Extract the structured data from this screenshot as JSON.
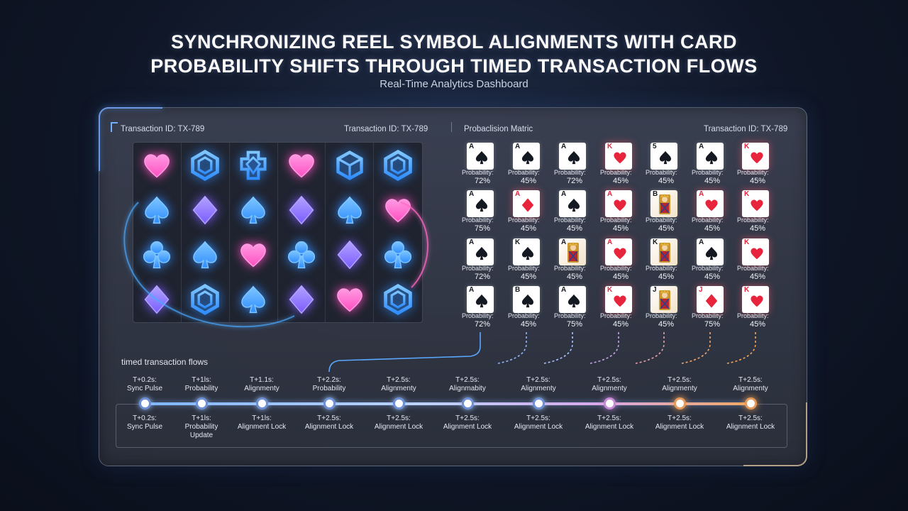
{
  "header": {
    "title_line1": "SYNCHRONIZING REEL SYMBOL ALIGNMENTS WITH CARD",
    "title_line2": "PROBABILITY SHIFTS THROUGH TIMED TRANSACTION FLOWS",
    "subtitle": "Real-Time Analytics Dashboard"
  },
  "panel": {
    "transaction_left": "Transaction ID: TX-789",
    "transaction_mid": "Transaction ID: TX-789",
    "matrix_title": "Probaclision Matric",
    "transaction_right": "Transaction ID: TX-789"
  },
  "reels": {
    "rows": [
      [
        "heart-pink",
        "hexagon-blue",
        "crest-blue",
        "heart-pink",
        "cube-blue",
        "hexagon-blue"
      ],
      [
        "spade-blue",
        "diamond-purple",
        "spade-blue",
        "diamond-purple",
        "spade-blue",
        "heart-pink"
      ],
      [
        "club-blue",
        "spade-blue",
        "heart-pink",
        "club-blue",
        "diamond-purple",
        "club-blue"
      ],
      [
        "diamond-purple",
        "hexagon-blue",
        "spade-blue",
        "diamond-purple",
        "heart-pink",
        "hexagon-blue"
      ]
    ]
  },
  "matrix": {
    "rows": [
      [
        {
          "rank": "A",
          "suit": "spade",
          "label": "Probability:",
          "prob": "72%"
        },
        {
          "rank": "A",
          "suit": "spade",
          "label": "Probability:",
          "prob": "45%"
        },
        {
          "rank": "A",
          "suit": "spade",
          "label": "Probability:",
          "prob": "72%"
        },
        {
          "rank": "K",
          "suit": "heart",
          "label": "Probability:",
          "prob": "45%"
        },
        {
          "rank": "5",
          "suit": "spade",
          "label": "Probability:",
          "prob": "45%"
        },
        {
          "rank": "A",
          "suit": "spade",
          "label": "Probability:",
          "prob": "45%"
        },
        {
          "rank": "K",
          "suit": "heart",
          "label": "Probability:",
          "prob": "45%"
        }
      ],
      [
        {
          "rank": "A",
          "suit": "spade",
          "label": "Probability:",
          "prob": "75%"
        },
        {
          "rank": "A",
          "suit": "diamond",
          "label": "Probability:",
          "prob": "45%"
        },
        {
          "rank": "A",
          "suit": "spade",
          "label": "Probability:",
          "prob": "45%"
        },
        {
          "rank": "A",
          "suit": "heart",
          "label": "Probability:",
          "prob": "45%"
        },
        {
          "rank": "B",
          "suit": "face",
          "label": "Probability:",
          "prob": "45%"
        },
        {
          "rank": "A",
          "suit": "heart",
          "label": "Probability:",
          "prob": "45%"
        },
        {
          "rank": "K",
          "suit": "heart",
          "label": "Probability:",
          "prob": "45%"
        }
      ],
      [
        {
          "rank": "A",
          "suit": "spade",
          "label": "Probability:",
          "prob": "72%"
        },
        {
          "rank": "K",
          "suit": "spade",
          "label": "Probability:",
          "prob": "45%"
        },
        {
          "rank": "A",
          "suit": "face",
          "label": "Probability:",
          "prob": "45%"
        },
        {
          "rank": "A",
          "suit": "heart",
          "label": "Probability:",
          "prob": "45%"
        },
        {
          "rank": "K",
          "suit": "face",
          "label": "Probability:",
          "prob": "45%"
        },
        {
          "rank": "A",
          "suit": "spade",
          "label": "Probability:",
          "prob": "45%"
        },
        {
          "rank": "K",
          "suit": "heart",
          "label": "Probability:",
          "prob": "45%"
        }
      ],
      [
        {
          "rank": "A",
          "suit": "spade",
          "label": "Probability:",
          "prob": "72%"
        },
        {
          "rank": "B",
          "suit": "spade",
          "label": "Probability:",
          "prob": "45%"
        },
        {
          "rank": "A",
          "suit": "spade",
          "label": "Probability:",
          "prob": "75%"
        },
        {
          "rank": "K",
          "suit": "heart",
          "label": "Probability:",
          "prob": "45%"
        },
        {
          "rank": "J",
          "suit": "face",
          "label": "Probability:",
          "prob": "45%"
        },
        {
          "rank": "J",
          "suit": "diamond",
          "label": "Probability:",
          "prob": "75%"
        },
        {
          "rank": "K",
          "suit": "heart",
          "label": "Probability:",
          "prob": "45%"
        }
      ]
    ]
  },
  "timeline": {
    "title": "timed transaction flows",
    "nodes": [
      {
        "top": "T+0.2s:\nSync Pulse",
        "bottom": "T+0.2s:\nSync Pulse",
        "tone": "cool"
      },
      {
        "top": "T+1ls:\nProbability",
        "bottom": "T+1ls:\nProbability\nUpdate",
        "tone": "cool"
      },
      {
        "top": "T+1.1s:\nAlignmenty",
        "bottom": "T+1ls:\nAlignment Lock",
        "tone": "cool"
      },
      {
        "top": "T+2.2s:\nProbability",
        "bottom": "T+2.5s:\nAlignment Lock",
        "tone": "cool"
      },
      {
        "top": "T+2.5s:\nAlignmenty",
        "bottom": "T+2.5s:\nAlignment Lock",
        "tone": "cool"
      },
      {
        "top": "T+2.5s:\nAlignmabity",
        "bottom": "T+2.5s:\nAlignment Lock",
        "tone": "cool"
      },
      {
        "top": "T+2.5s:\nAlignmenty",
        "bottom": "T+2.5s:\nAlignment Lock",
        "tone": "cool"
      },
      {
        "top": "T+2.5s:\nAlignmenty",
        "bottom": "T+2.5s:\nAlignment Lock",
        "tone": "pink"
      },
      {
        "top": "T+2.5s:\nAlignmenty",
        "bottom": "T+2.5s:\nAlignment Lock",
        "tone": "warm"
      },
      {
        "top": "T+2.5s:\nAlignmenty",
        "bottom": "T+2.5s:\nAlignment Lock",
        "tone": "warm"
      }
    ]
  },
  "colors": {
    "accent_blue": "#4aa8ff",
    "accent_pink": "#ff5fc8",
    "accent_purple": "#8a6cff",
    "card_red": "#e8243c",
    "card_black": "#141820",
    "flow_warm": "#f2a860"
  }
}
